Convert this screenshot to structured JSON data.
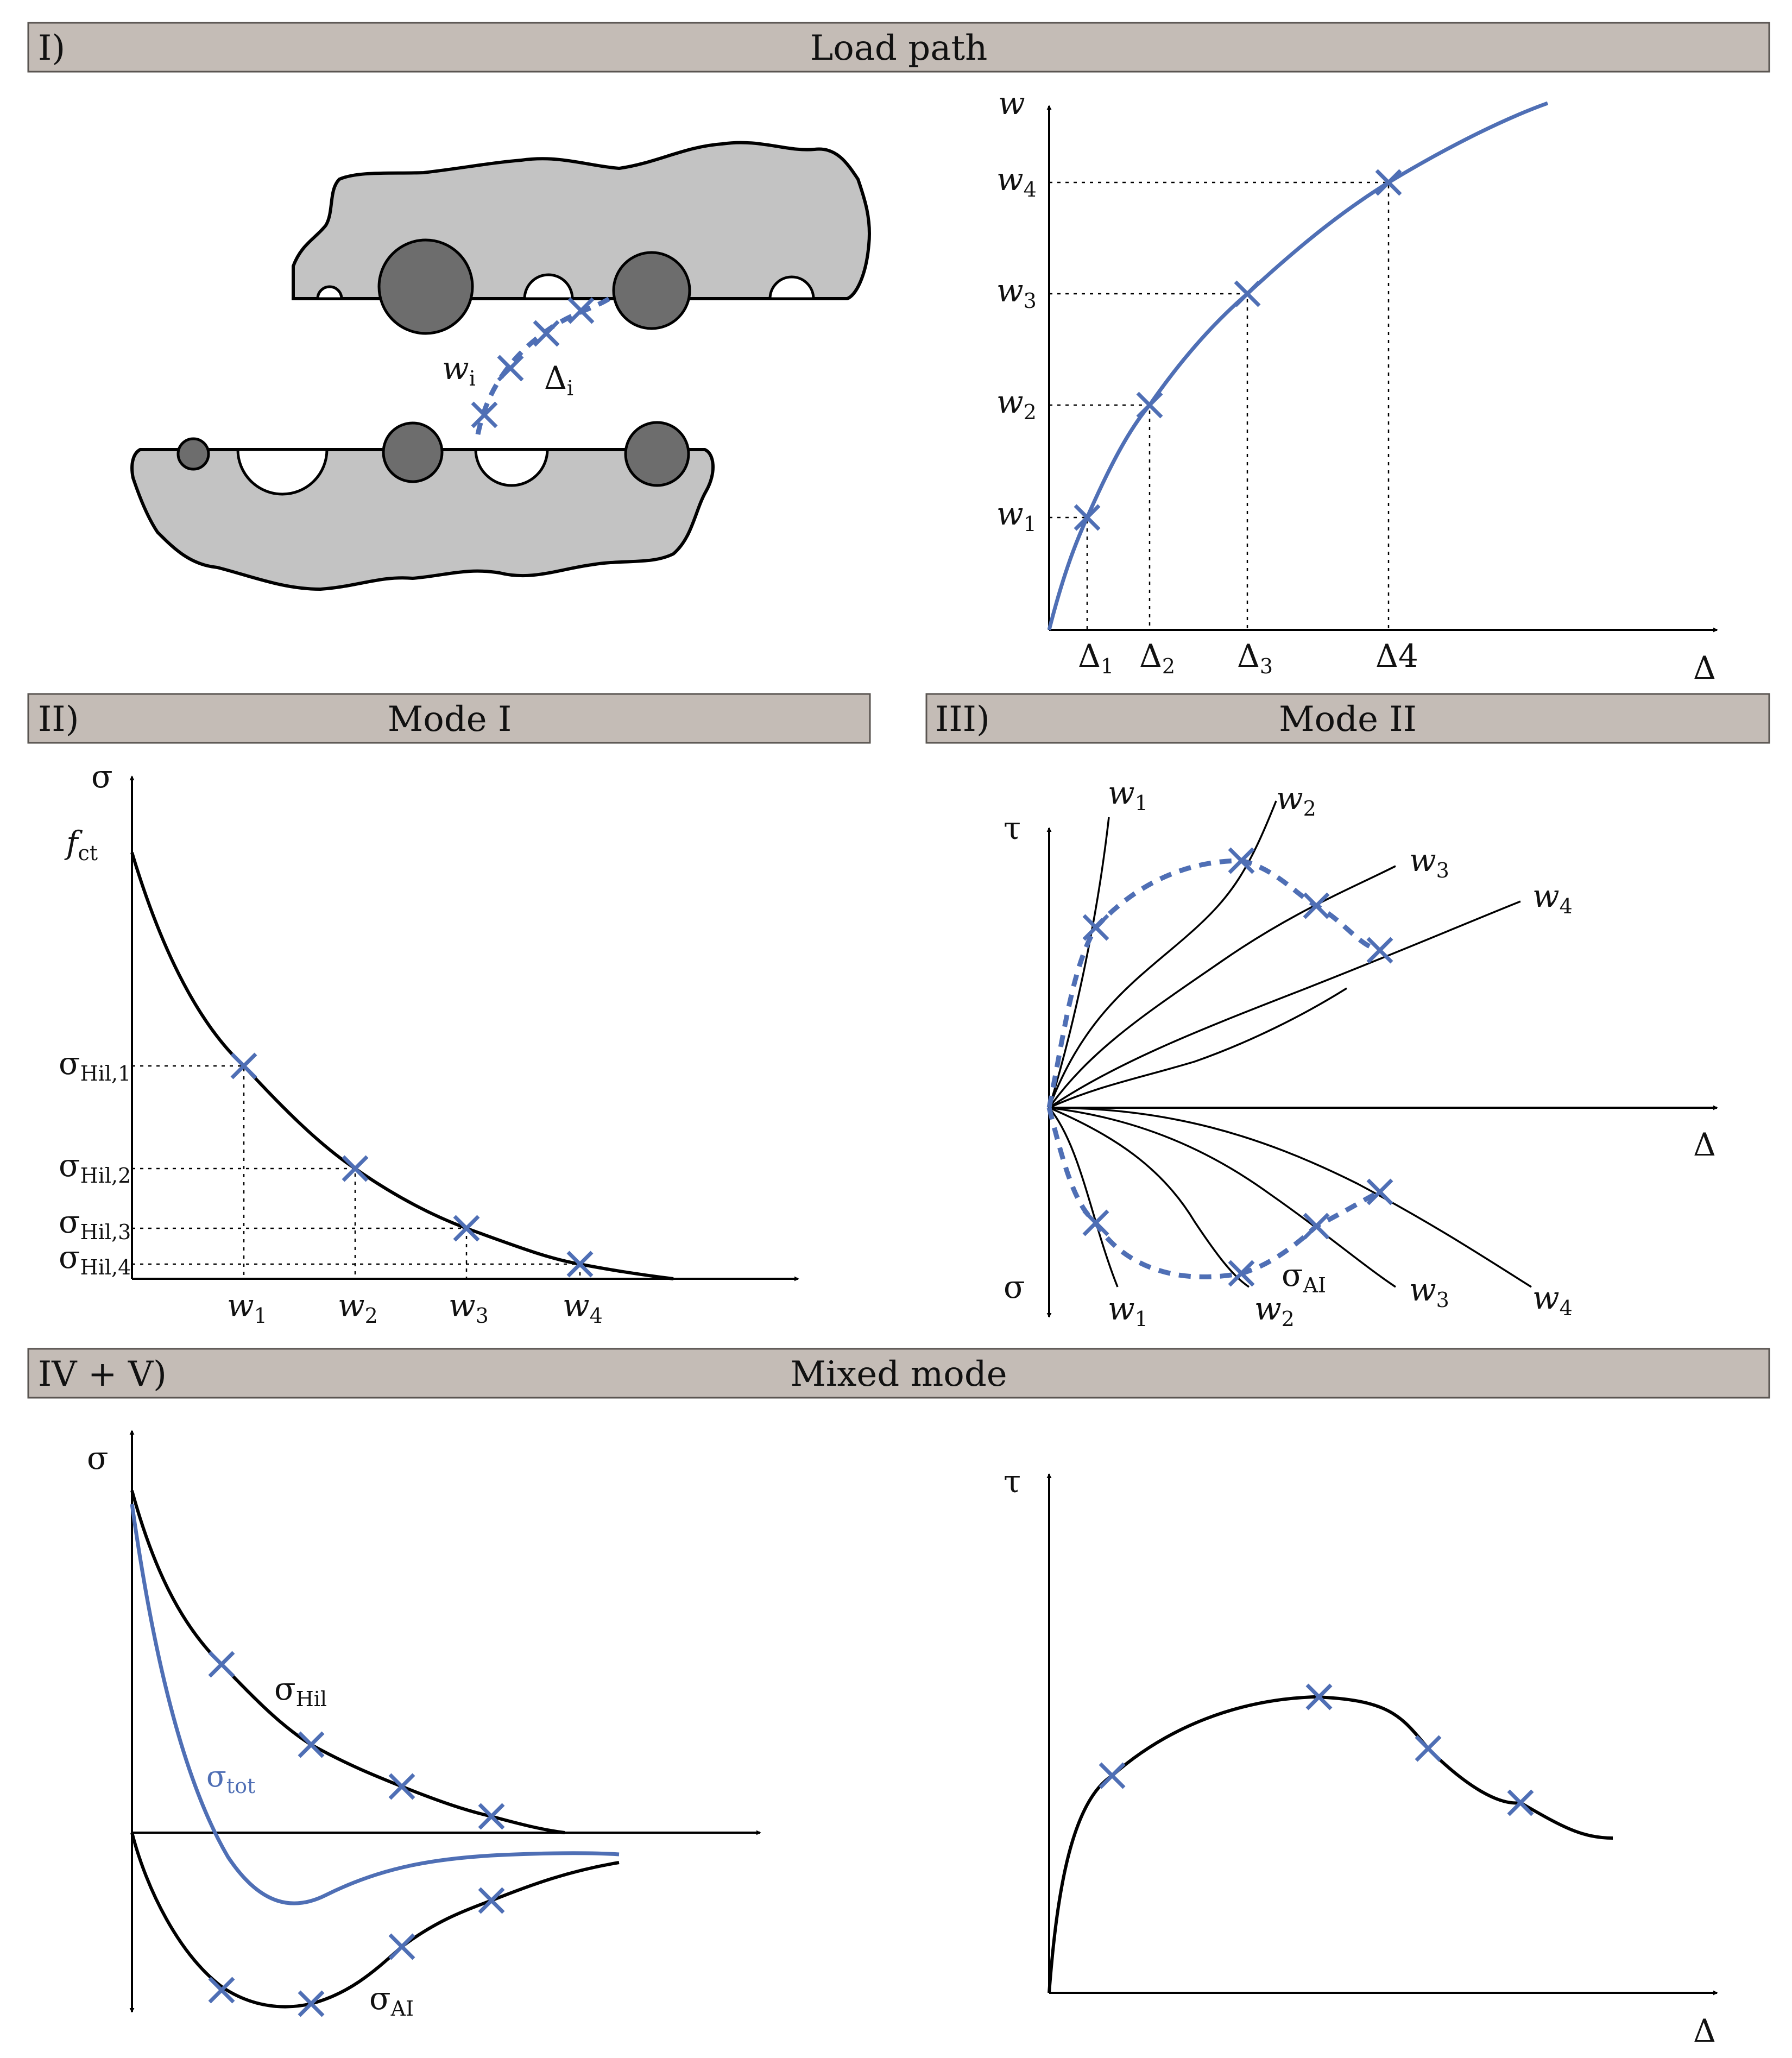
{
  "panels": {
    "load_path": {
      "id": "I)",
      "title": "Load path"
    },
    "mode1": {
      "id": "II)",
      "title": "Mode I"
    },
    "mode2": {
      "id": "III)",
      "title": "Mode II"
    },
    "mixed": {
      "id": "IV + V)",
      "title": "Mixed mode"
    }
  },
  "crack_labels": {
    "w": "w",
    "w_sub": "i",
    "d": "Δ",
    "d_sub": "i"
  },
  "load_path_chart": {
    "y_axis": "w",
    "x_axis": "Δ",
    "w_ticks": [
      {
        "b": "w",
        "s": "4"
      },
      {
        "b": "w",
        "s": "3"
      },
      {
        "b": "w",
        "s": "2"
      },
      {
        "b": "w",
        "s": "1"
      }
    ],
    "d_ticks": [
      {
        "b": "Δ",
        "s": "1"
      },
      {
        "b": "Δ",
        "s": "2"
      },
      {
        "b": "Δ",
        "s": "3"
      },
      {
        "b": "Δ4",
        "s": ""
      }
    ]
  },
  "mode1_chart": {
    "y_axis": "σ",
    "fct": {
      "b": "f",
      "s": "ct"
    },
    "sigma_ticks": [
      {
        "b": "σ",
        "s": "Hil,1"
      },
      {
        "b": "σ",
        "s": "Hil,2"
      },
      {
        "b": "σ",
        "s": "Hil,3"
      },
      {
        "b": "σ",
        "s": "Hil,4"
      }
    ],
    "w_ticks": [
      {
        "b": "w",
        "s": "1"
      },
      {
        "b": "w",
        "s": "2"
      },
      {
        "b": "w",
        "s": "3"
      },
      {
        "b": "w",
        "s": "4"
      }
    ]
  },
  "mode2_chart": {
    "y_top": "τ",
    "y_bottom": "σ",
    "x_axis": "Δ",
    "upper": [
      {
        "b": "w",
        "s": "1"
      },
      {
        "b": "w",
        "s": "2"
      },
      {
        "b": "w",
        "s": "3"
      },
      {
        "b": "w",
        "s": "4"
      }
    ],
    "lower": [
      {
        "b": "w",
        "s": "1"
      },
      {
        "b": "w",
        "s": "2"
      },
      {
        "b": "w",
        "s": "3"
      },
      {
        "b": "w",
        "s": "4"
      }
    ],
    "sigma_ai": {
      "b": "σ",
      "s": "AI"
    }
  },
  "mixed_sigma_chart": {
    "y_axis": "σ",
    "hil": {
      "b": "σ",
      "s": "Hil"
    },
    "tot": {
      "b": "σ",
      "s": "tot"
    },
    "ai": {
      "b": "σ",
      "s": "AI"
    }
  },
  "mixed_tau_chart": {
    "y_axis": "τ",
    "x_axis": "Δ"
  },
  "colors": {
    "accent_blue": "#4f6fb5",
    "header_fill": "#c4bcb6",
    "aggregate": "#6d6d6d",
    "matrix": "#c3c3c3"
  }
}
